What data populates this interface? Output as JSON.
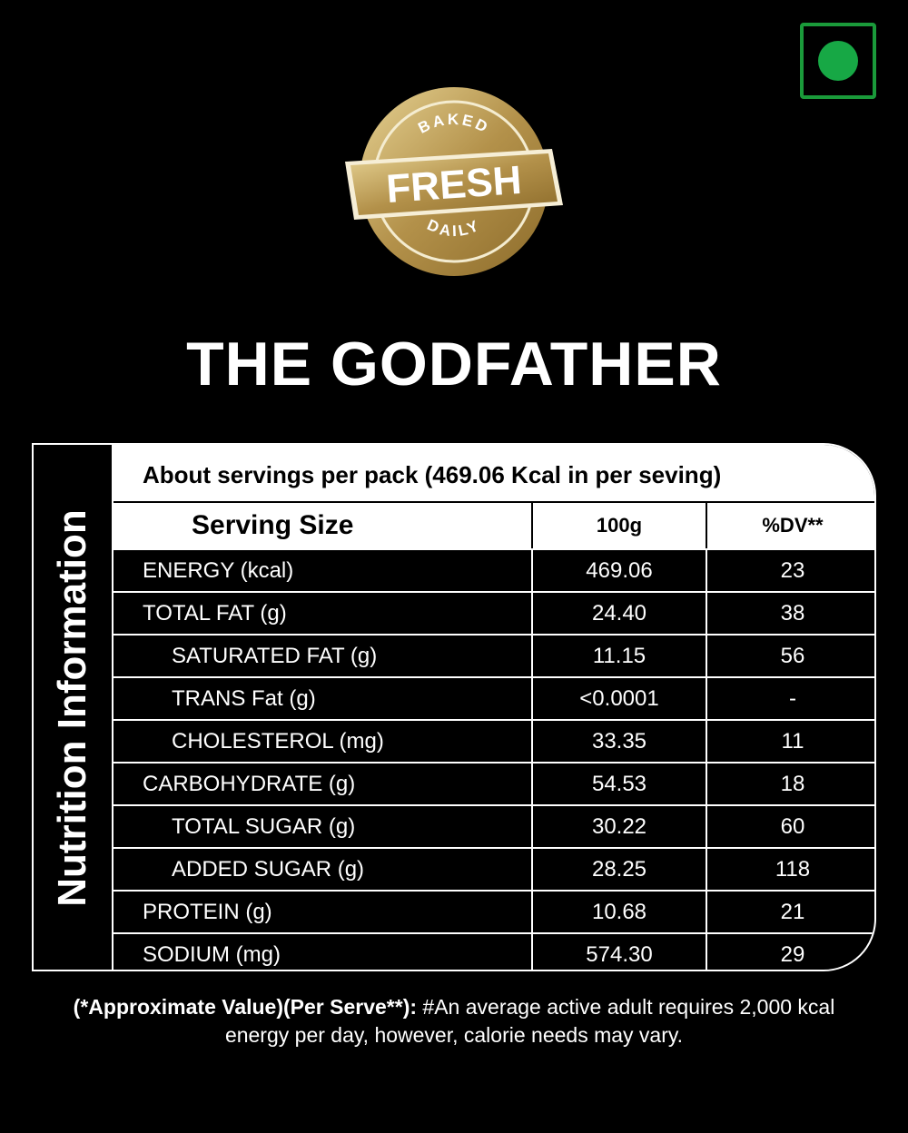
{
  "badge": {
    "top": "BAKED",
    "main": "FRESH",
    "bottom": "DAILY"
  },
  "title": "THE GODFATHER",
  "panel": {
    "side_label": "Nutrition Information",
    "servings": "About  servings per pack (469.06 Kcal in per seving)",
    "header": [
      "Serving Size",
      "100g",
      "%DV**"
    ],
    "rows": [
      [
        "ENERGY (kcal)",
        "469.06",
        "23"
      ],
      [
        "TOTAL FAT (g)",
        "24.40",
        "38"
      ],
      [
        "SATURATED FAT (g)",
        "11.15",
        "56"
      ],
      [
        "TRANS Fat (g)",
        "<0.0001",
        "-"
      ],
      [
        "CHOLESTEROL (mg)",
        "33.35",
        "11"
      ],
      [
        "CARBOHYDRATE (g)",
        "54.53",
        "18"
      ],
      [
        "TOTAL SUGAR (g)",
        "30.22",
        "60"
      ],
      [
        "ADDED SUGAR (g)",
        "28.25",
        "118"
      ],
      [
        "PROTEIN (g)",
        "10.68",
        "21"
      ],
      [
        "SODIUM (mg)",
        "574.30",
        "29"
      ]
    ]
  },
  "footnote": {
    "bold": "(*Approximate Value)(Per Serve**):",
    "text": " #An average active adult requires 2,000 kcal energy per day, however, calorie needs may vary."
  }
}
